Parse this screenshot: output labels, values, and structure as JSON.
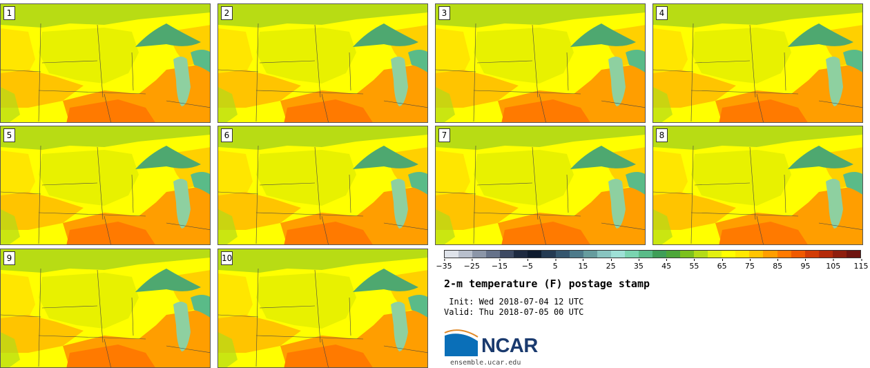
{
  "panels": [
    {
      "label": "1"
    },
    {
      "label": "2"
    },
    {
      "label": "3"
    },
    {
      "label": "4"
    },
    {
      "label": "5"
    },
    {
      "label": "6"
    },
    {
      "label": "7"
    },
    {
      "label": "8"
    },
    {
      "label": "9"
    },
    {
      "label": "10"
    }
  ],
  "colorbar": {
    "colors": [
      "#dfe3ea",
      "#b8bfcc",
      "#8c96a8",
      "#66728a",
      "#3e4a63",
      "#1e2a40",
      "#0e1b2e",
      "#243a52",
      "#35566e",
      "#4d7a8a",
      "#669c9e",
      "#88c4c0",
      "#9ee0d6",
      "#7ad4b0",
      "#5abb88",
      "#3f9e58",
      "#4da63a",
      "#7cc11e",
      "#b4db18",
      "#e2ef10",
      "#ffff00",
      "#ffe800",
      "#ffc400",
      "#ff9e00",
      "#ff7a00",
      "#f05a00",
      "#d23c06",
      "#b42a0a",
      "#8e1e0e",
      "#6e1410"
    ],
    "tick_labels": [
      "−35",
      "−25",
      "−15",
      "−5",
      "5",
      "15",
      "25",
      "35",
      "45",
      "55",
      "65",
      "75",
      "85",
      "95",
      "105",
      "115"
    ]
  },
  "title": "2-m temperature (F) postage stamp",
  "init_line": " Init: Wed 2018-07-04 12 UTC",
  "valid_line": "Valid: Thu 2018-07-05 00 UTC",
  "logo_text": "NCAR",
  "site": "ensemble.ucar.edu"
}
